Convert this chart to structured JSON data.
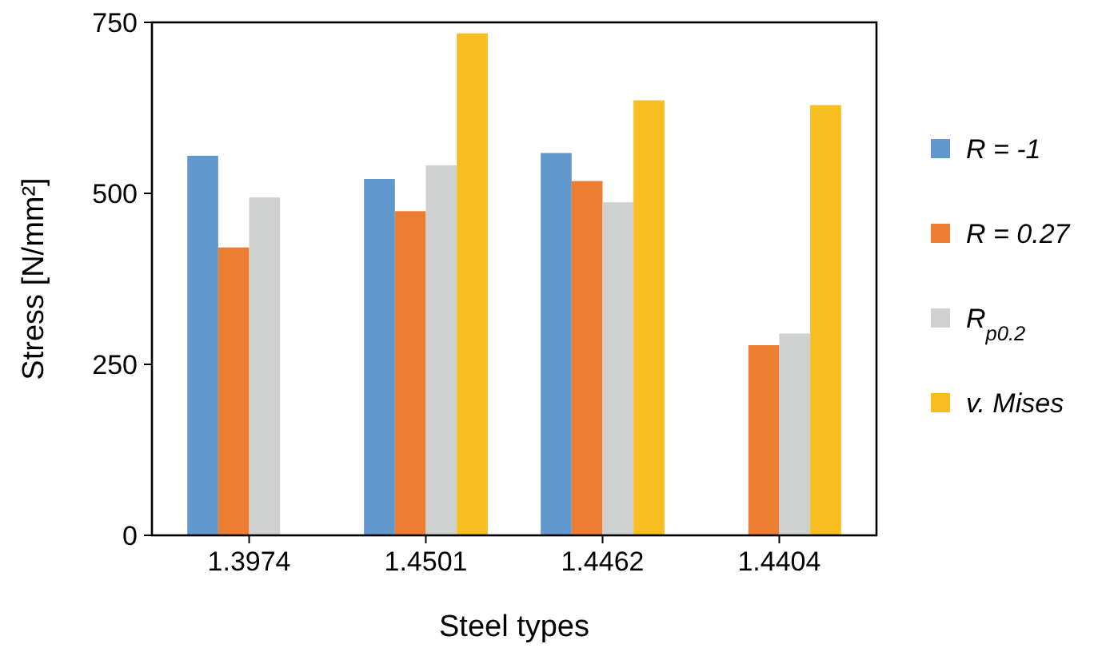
{
  "chart_data": {
    "type": "bar",
    "xlabel": "Steel types",
    "ylabel": "Stress [N/mm²]",
    "categories": [
      "1.3974",
      "1.4501",
      "1.4462",
      "1.4404"
    ],
    "series": [
      {
        "name": "R = -1",
        "color": "#6199cf",
        "values": [
          555,
          521,
          559,
          null
        ]
      },
      {
        "name": "R = 0.27",
        "color": "#ed7d31",
        "values": [
          421,
          474,
          518,
          278
        ]
      },
      {
        "name": "R$_{p0.2}$",
        "color": "#cfd0d0",
        "values": [
          494,
          541,
          487,
          295
        ]
      },
      {
        "name": "v. Mises",
        "color": "#f8bd1e",
        "values": [
          null,
          734,
          636,
          629
        ]
      }
    ],
    "ylim": [
      0,
      750
    ],
    "yticks": [
      0,
      250,
      500,
      750
    ],
    "grid": false,
    "legend": "right"
  }
}
